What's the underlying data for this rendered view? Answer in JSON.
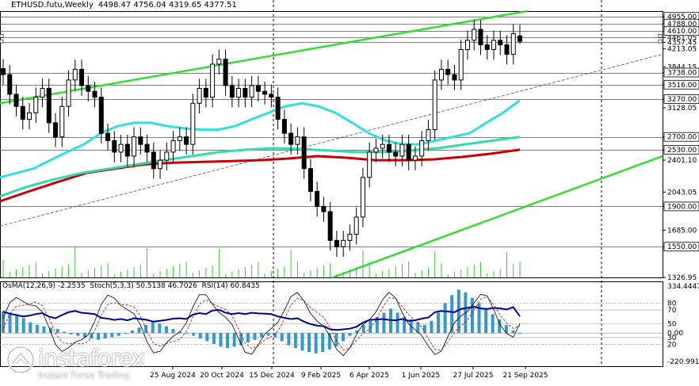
{
  "header": {
    "symbol": "ETHUSD.futu,Weekly",
    "ohlc": "4498.47 4756.04 4319.65 4377.51"
  },
  "indicator_header": "OsMA(12,26,9) -2.2535  Stoch(5,3,3) 50.5138 46.7026  RSI(14) 60.8435",
  "watermark": {
    "brand": "instaforex",
    "tagline": "Instant Forex Trading"
  },
  "colors": {
    "candle": "#000000",
    "channel": "#33dd33",
    "ma_cyan": "#33e0e0",
    "ma_teal": "#33ddaa",
    "ma_red": "#cc0000",
    "volume": "#33cc33",
    "osma": "#3399cc",
    "stoch_main": "#000000",
    "stoch_signal": "#cc0000",
    "rsi": "#000099",
    "grid": "#000000"
  },
  "chart_data": [
    {
      "type": "candlestick",
      "panel": "price",
      "y_axis_labels": [
        "4955.00",
        "4788.00",
        "4610.00",
        "4461.05",
        "4357.45",
        "4213.05",
        "3844.15",
        "3738.00",
        "3516.00",
        "3270.00",
        "3128.05",
        "2700.00",
        "2530.00",
        "2401.10",
        "2043.05",
        "1900.00",
        "1685.00",
        "1550.00",
        "1326.95"
      ],
      "x_axis_labels": [
        "25 Aug 2024",
        "20 Oct 2024",
        "15 Dec 2024",
        "9 Feb 2025",
        "6 Apr 2025",
        "1 Jun 2025",
        "27 Jul 2025",
        "21 Sep 2025"
      ],
      "ylim": [
        1326.95,
        5100
      ],
      "last_candle": {
        "open": 4498.47,
        "high": 4756.04,
        "low": 4319.65,
        "close": 4377.51
      },
      "closes_approx": [
        3700,
        3350,
        3150,
        2950,
        3050,
        3300,
        3450,
        2900,
        2700,
        3150,
        3600,
        3800,
        3500,
        3400,
        3300,
        2750,
        2650,
        2500,
        2600,
        2450,
        2700,
        2600,
        2500,
        2300,
        2400,
        2500,
        2650,
        2700,
        2600,
        3200,
        3450,
        3300,
        3900,
        4000,
        3500,
        3300,
        3450,
        3300,
        3500,
        3400,
        3350,
        3300,
        2950,
        2750,
        2600,
        2700,
        2300,
        2050,
        1900,
        1850,
        1600,
        1550,
        1600,
        1650,
        1800,
        2200,
        2500,
        2550,
        2600,
        2500,
        2450,
        2600,
        2400,
        2450,
        2650,
        2800,
        3600,
        3800,
        3700,
        3600,
        4200,
        4400,
        4650,
        4300,
        4200,
        4400,
        4300,
        4100,
        4550,
        4377.51
      ],
      "indicators": {
        "ma_cyan_approx": [
          2200,
          2250,
          2300,
          2400,
          2500,
          2600,
          2750,
          2850,
          2900,
          2900,
          2850,
          2820,
          2800,
          2800,
          2850,
          2950,
          3050,
          3150,
          3200,
          3150,
          3050,
          2900,
          2750,
          2650,
          2600,
          2600,
          2650,
          2700,
          2750,
          2900,
          3050,
          3250
        ],
        "ma_teal_approx": [
          2000,
          2100,
          2180,
          2250,
          2300,
          2350,
          2400,
          2450,
          2500,
          2530,
          2550,
          2540,
          2520,
          2500,
          2500,
          2520,
          2550,
          2600,
          2650,
          2700
        ],
        "ma_red_approx": [
          1950,
          2050,
          2150,
          2250,
          2300,
          2350,
          2370,
          2380,
          2390,
          2400,
          2420,
          2450,
          2430,
          2400,
          2400,
          2410,
          2440,
          2480,
          2530
        ]
      }
    },
    {
      "type": "bar",
      "panel": "indicator",
      "y_axis_labels": [
        "334.4447",
        "80",
        "70",
        "50",
        "30",
        "20",
        "0.00",
        "-220.9913"
      ],
      "osma_values_approx": [
        160,
        150,
        130,
        110,
        80,
        60,
        50,
        40,
        30,
        10,
        -10,
        -20,
        -30,
        -40,
        -50,
        -40,
        -30,
        -20,
        0,
        20,
        40,
        60,
        80,
        70,
        50,
        30,
        10,
        0,
        -20,
        -40,
        -60,
        -80,
        -100,
        -110,
        -100,
        -90,
        -70,
        -50,
        -30,
        -20,
        -30,
        -60,
        -90,
        -110,
        -130,
        -140,
        -150,
        -140,
        -120,
        -100,
        -60,
        -20,
        20,
        60,
        90,
        120,
        150,
        180,
        150,
        120,
        100,
        80,
        60,
        90,
        150,
        220,
        280,
        320,
        300,
        260,
        220,
        180,
        140,
        100,
        60,
        20,
        -2.2535
      ],
      "stoch_main_last": 50.5138,
      "stoch_signal_last": 46.7026,
      "rsi_last": 60.8435
    }
  ]
}
